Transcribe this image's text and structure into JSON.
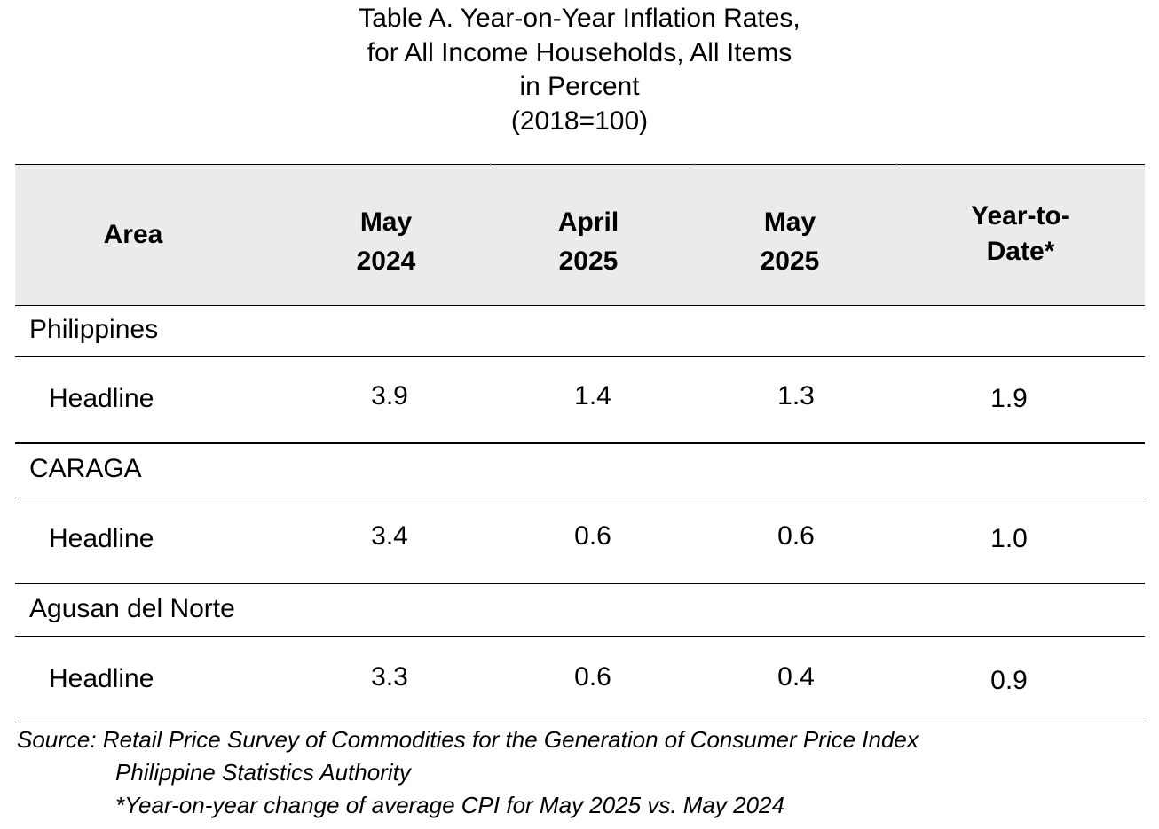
{
  "title": {
    "line1": "Table A. Year-on-Year Inflation Rates,",
    "line2": "for All Income Households, All Items",
    "line3": "in Percent",
    "line4": "(2018=100)"
  },
  "headers": {
    "area": "Area",
    "col1": [
      "May",
      "2024"
    ],
    "col2": [
      "April",
      "2025"
    ],
    "col3": [
      "May",
      "2025"
    ],
    "col4": [
      "Year-to-",
      "Date*"
    ]
  },
  "groups": [
    {
      "area": "Philippines",
      "row_label": "Headline",
      "values": [
        "3.9",
        "1.4",
        "1.3",
        "1.9"
      ]
    },
    {
      "area": "CARAGA",
      "row_label": "Headline",
      "values": [
        "3.4",
        "0.6",
        "0.6",
        "1.0"
      ]
    },
    {
      "area": "Agusan del Norte",
      "row_label": "Headline",
      "values": [
        "3.3",
        "0.6",
        "0.4",
        "0.9"
      ]
    }
  ],
  "footer": {
    "source": "Source: Retail Price Survey of Commodities for the Generation of Consumer Price Index",
    "agency": "Philippine Statistics Authority",
    "note": "*Year-on-year change of average CPI for May 2025 vs. May 2024"
  }
}
